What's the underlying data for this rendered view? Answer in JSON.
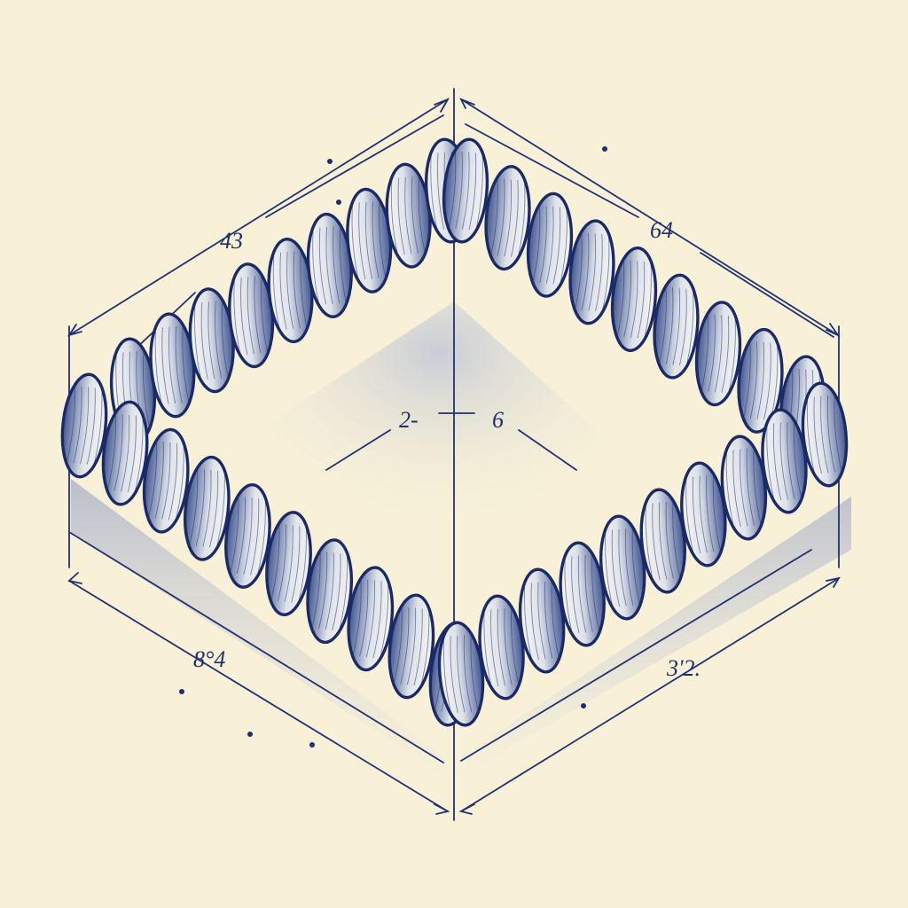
{
  "colors": {
    "paper": "#f8f1d8",
    "ink": "#1c2f6e",
    "rope_light": "#eef0f1",
    "rope_shade": "#3b4f8f",
    "shadow": "#6a7fbf"
  },
  "dimensions": {
    "top_left": "43",
    "top_right": "64",
    "bottom_left": "8°4",
    "bottom_right": "3'2.",
    "center_left": "2-",
    "center_right": "6"
  }
}
